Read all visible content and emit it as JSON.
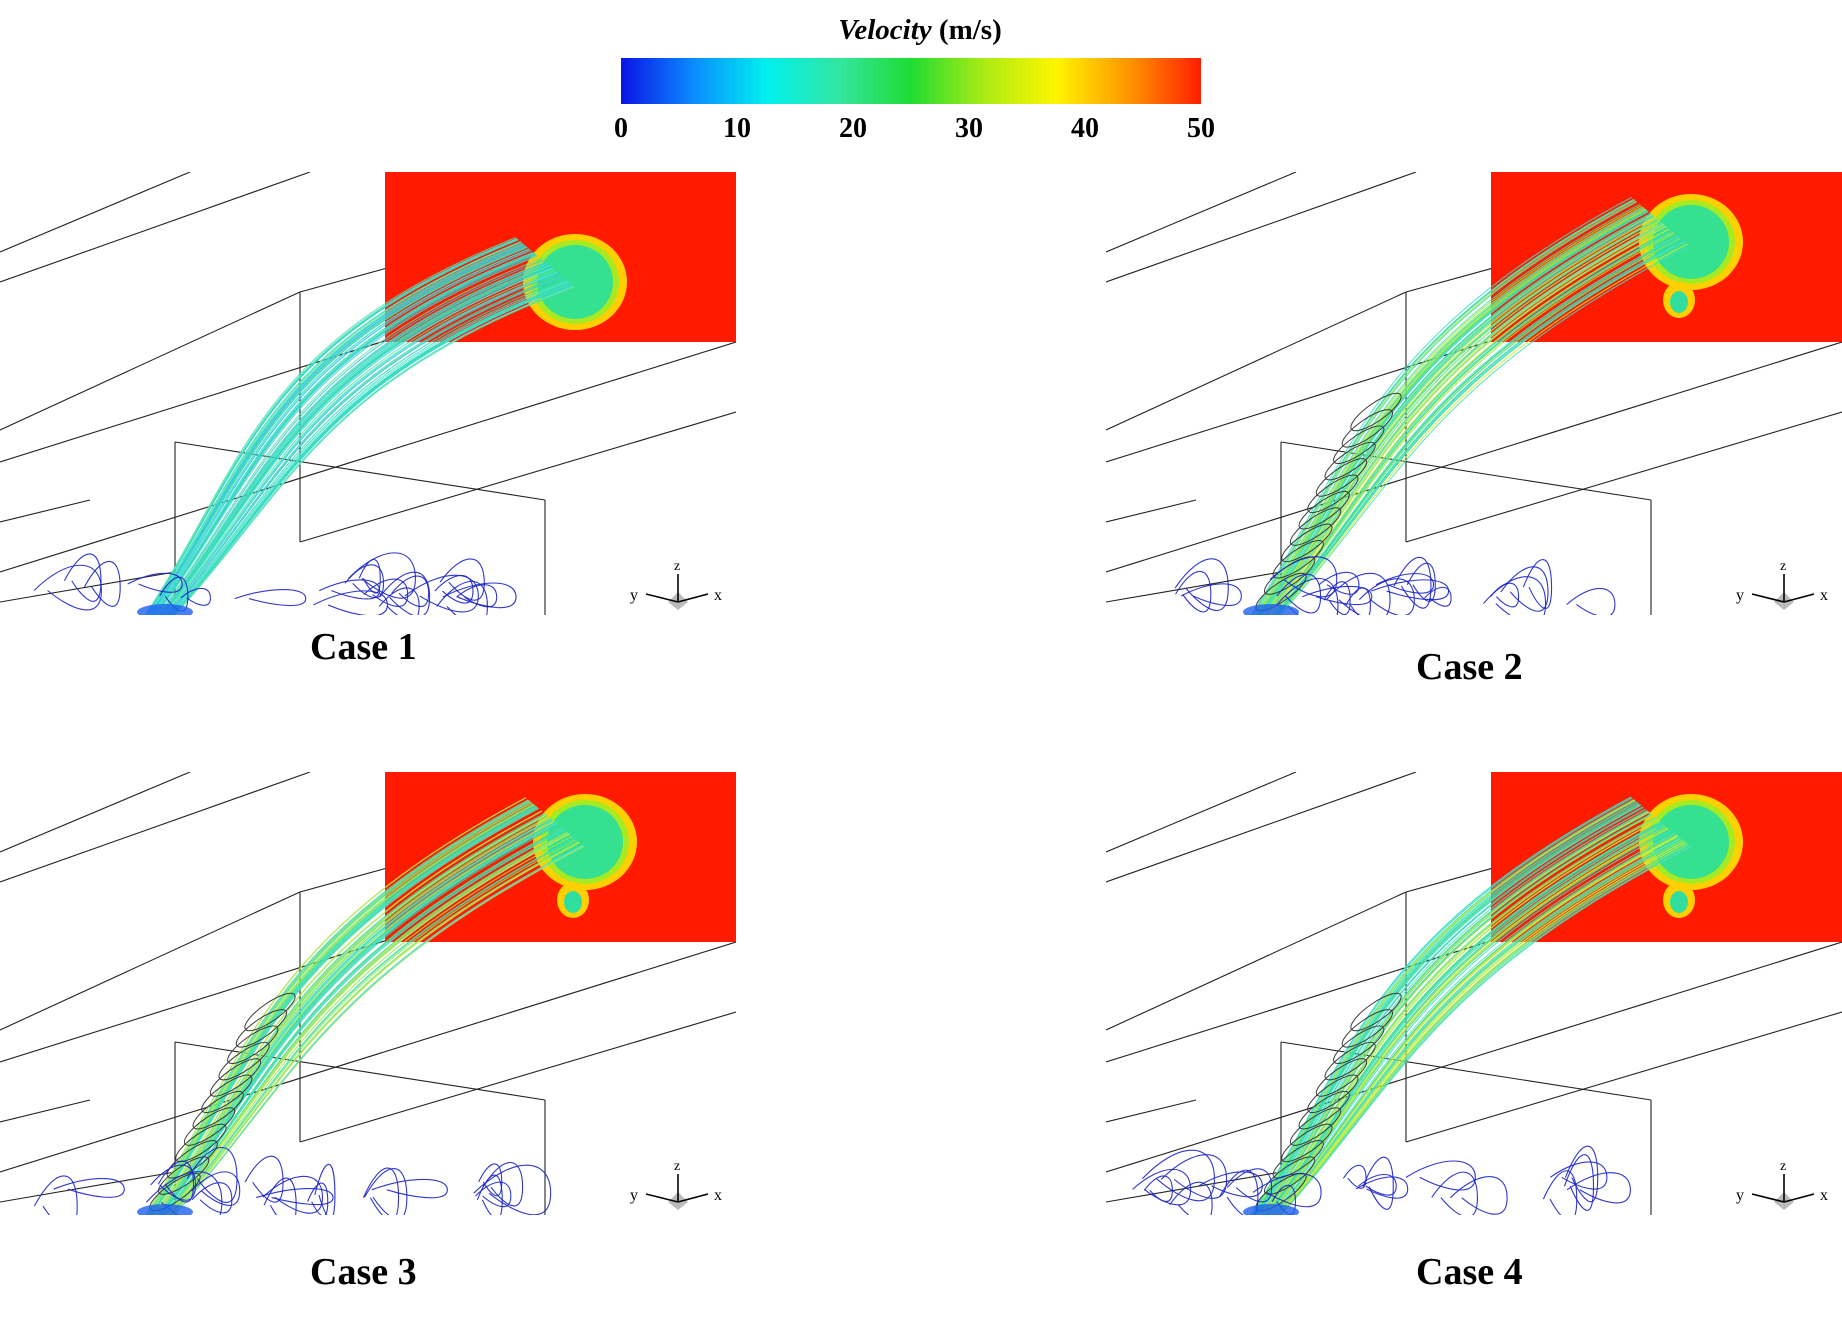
{
  "legend": {
    "title_var": "Velocity",
    "title_unit": "(m/s)",
    "ticks": [
      "0",
      "10",
      "20",
      "30",
      "40",
      "50"
    ],
    "colormap": [
      "#0a14e6",
      "#0a8cff",
      "#00f0f0",
      "#33e6a0",
      "#1edc32",
      "#aaeb14",
      "#fff500",
      "#ff9600",
      "#ff1e00"
    ]
  },
  "axes_triad": {
    "x": "x",
    "y": "y",
    "z": "z"
  },
  "panels": [
    {
      "label": "Case 1",
      "variant": 1
    },
    {
      "label": "Case 2",
      "variant": 2
    },
    {
      "label": "Case 3",
      "variant": 3
    },
    {
      "label": "Case 4",
      "variant": 4
    }
  ]
}
